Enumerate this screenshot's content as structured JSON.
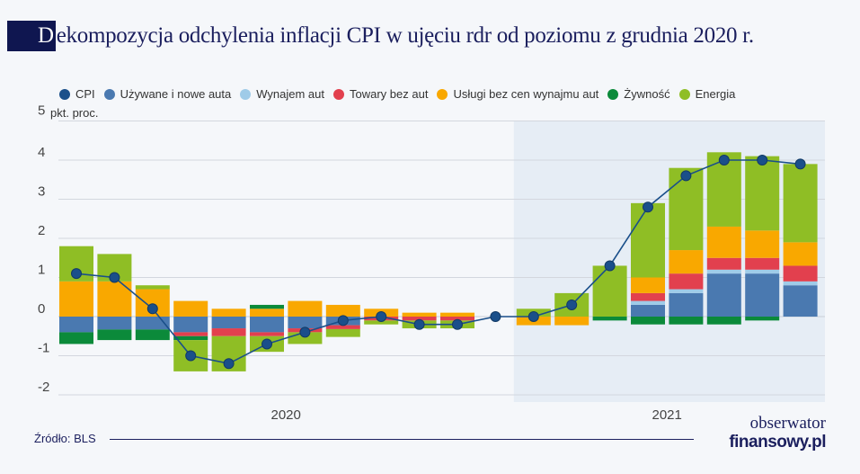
{
  "title_initial": "D",
  "title_rest": "ekompozycja odchylenia inflacji CPI w ujęciu rdr od poziomu z grudnia 2020 r.",
  "source": "Źródło: BLS",
  "logo": {
    "line1": "obserwator",
    "line2": "finansowy.pl"
  },
  "chart_data": {
    "type": "bar",
    "stacked": true,
    "title": "Dekompozycja odchylenia inflacji CPI w ujęciu rdr od poziomu z grudnia 2020 r.",
    "ylabel": "pkt. proc.",
    "ylim": [
      -2,
      5
    ],
    "yticks": [
      5,
      4,
      3,
      2,
      1,
      0,
      -1,
      -2
    ],
    "grid": true,
    "legend_placement": "top",
    "categories": [
      "2020-01",
      "2020-02",
      "2020-03",
      "2020-04",
      "2020-05",
      "2020-06",
      "2020-07",
      "2020-08",
      "2020-09",
      "2020-10",
      "2020-11",
      "2020-12",
      "2021-01",
      "2021-02",
      "2021-03",
      "2021-04",
      "2021-05",
      "2021-06",
      "2021-07",
      "2021-08"
    ],
    "x_year_labels": [
      "2020",
      "2021"
    ],
    "highlight_from": "2021-01",
    "series": [
      {
        "name": "Używane i nowe auta",
        "color": "#4a79b0",
        "values": [
          -0.4,
          -0.33,
          -0.33,
          -0.4,
          -0.3,
          -0.4,
          -0.3,
          -0.22,
          0,
          0,
          0,
          0,
          0,
          0,
          0,
          0.3,
          0.6,
          1.1,
          1.1,
          0.8
        ]
      },
      {
        "name": "Wynajem aut",
        "color": "#9fcbe8",
        "values": [
          0,
          0,
          0,
          0,
          0,
          0,
          0,
          0,
          0,
          0,
          0,
          0,
          0,
          0,
          0,
          0.1,
          0.1,
          0.1,
          0.1,
          0.1
        ]
      },
      {
        "name": "Towary bez aut",
        "color": "#e2404e",
        "values": [
          0,
          0,
          0,
          -0.1,
          -0.2,
          -0.1,
          -0.1,
          -0.1,
          -0.1,
          -0.1,
          -0.1,
          0,
          0,
          0,
          0,
          0.2,
          0.4,
          0.3,
          0.3,
          0.4
        ]
      },
      {
        "name": "Usługi bez cen wynajmu aut",
        "color": "#f9a800",
        "values": [
          0.9,
          0.9,
          0.7,
          0.4,
          0.2,
          0.2,
          0.4,
          0.3,
          0.2,
          0.1,
          0.1,
          0,
          -0.22,
          -0.22,
          0,
          0.4,
          0.6,
          0.8,
          0.7,
          0.6
        ]
      },
      {
        "name": "Żywność",
        "color": "#0b8a3a",
        "values": [
          -0.3,
          -0.27,
          -0.27,
          -0.1,
          0,
          0.1,
          0,
          0,
          0,
          0,
          0,
          0,
          0,
          0,
          -0.1,
          -0.2,
          -0.2,
          -0.2,
          -0.1,
          0
        ]
      },
      {
        "name": "Energia",
        "color": "#8fbe25",
        "values": [
          0.9,
          0.7,
          0.1,
          -0.8,
          -0.9,
          -0.4,
          -0.3,
          -0.2,
          -0.1,
          -0.2,
          -0.2,
          0,
          0.2,
          0.6,
          1.3,
          1.9,
          2.1,
          1.9,
          1.9,
          2.0
        ]
      }
    ],
    "line": {
      "name": "CPI",
      "color": "#1a4f8a",
      "values": [
        1.1,
        1.0,
        0.2,
        -1.0,
        -1.2,
        -0.7,
        -0.4,
        -0.1,
        0.0,
        -0.2,
        -0.2,
        0.0,
        0.0,
        0.3,
        1.3,
        2.8,
        3.6,
        4.0,
        4.0,
        3.9
      ]
    }
  },
  "legend": [
    {
      "label": "CPI",
      "color": "#1a4f8a"
    },
    {
      "label": "Używane i nowe auta",
      "color": "#4a79b0"
    },
    {
      "label": "Wynajem aut",
      "color": "#9fcbe8"
    },
    {
      "label": "Towary bez aut",
      "color": "#e2404e"
    },
    {
      "label": "Usługi bez cen wynajmu aut",
      "color": "#f9a800"
    },
    {
      "label": "Żywność",
      "color": "#0b8a3a"
    },
    {
      "label": "Energia",
      "color": "#8fbe25"
    }
  ]
}
